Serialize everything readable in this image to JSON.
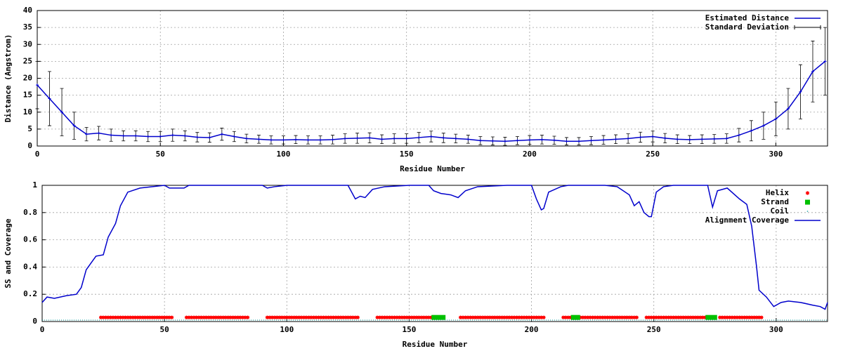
{
  "chart_data": [
    {
      "type": "line",
      "xlabel": "Residue Number",
      "ylabel": "Distance (Angstrom)",
      "xlim": [
        0,
        321
      ],
      "ylim": [
        0,
        40
      ],
      "xticks": [
        0,
        50,
        100,
        150,
        200,
        250,
        300
      ],
      "yticks": [
        0,
        5,
        10,
        15,
        20,
        25,
        30,
        35,
        40
      ],
      "grid": true,
      "x": [
        0,
        5,
        10,
        15,
        20,
        25,
        30,
        35,
        40,
        45,
        50,
        55,
        60,
        65,
        70,
        75,
        80,
        85,
        90,
        95,
        100,
        105,
        110,
        115,
        120,
        125,
        130,
        135,
        140,
        145,
        150,
        155,
        160,
        165,
        170,
        175,
        180,
        185,
        190,
        195,
        200,
        205,
        210,
        215,
        220,
        225,
        230,
        235,
        240,
        245,
        250,
        255,
        260,
        265,
        270,
        275,
        280,
        285,
        290,
        295,
        300,
        305,
        310,
        315,
        320
      ],
      "series": [
        {
          "name": "Estimated Distance",
          "color": "#0000cc",
          "values": [
            18,
            14,
            10,
            6,
            3.5,
            3.8,
            3.2,
            3,
            3,
            2.8,
            2.8,
            3.2,
            3,
            2.6,
            2.5,
            3.5,
            2.8,
            2.2,
            2,
            1.8,
            1.8,
            1.9,
            1.8,
            1.8,
            1.9,
            2.2,
            2.3,
            2.4,
            2,
            2.2,
            2.2,
            2.5,
            2.8,
            2.4,
            2.2,
            2,
            1.6,
            1.5,
            1.4,
            1.6,
            1.8,
            1.9,
            1.7,
            1.4,
            1.4,
            1.6,
            1.8,
            2,
            2.2,
            2.6,
            2.8,
            2.3,
            2,
            1.9,
            2,
            2.1,
            2.2,
            3.2,
            4.5,
            6,
            8,
            11,
            16,
            22,
            25
          ]
        }
      ],
      "errors": {
        "name": "Standard Deviation",
        "color": "#000000",
        "values": [
          7,
          8,
          7,
          4,
          2,
          2,
          1.8,
          1.5,
          1.5,
          1.5,
          1.5,
          1.8,
          1.5,
          1.4,
          1.4,
          1.8,
          1.5,
          1.3,
          1.2,
          1.2,
          1.2,
          1.2,
          1.2,
          1.2,
          1.3,
          1.4,
          1.5,
          1.5,
          1.3,
          1.4,
          1.4,
          1.5,
          1.6,
          1.4,
          1.3,
          1.2,
          1.2,
          1.2,
          1.2,
          1.2,
          1.3,
          1.3,
          1.2,
          1.1,
          1.1,
          1.2,
          1.3,
          1.3,
          1.4,
          1.5,
          1.6,
          1.4,
          1.3,
          1.2,
          1.3,
          1.3,
          1.4,
          2,
          3,
          4,
          5,
          6,
          8,
          9,
          10
        ]
      }
    },
    {
      "type": "line",
      "xlabel": "Residue Number",
      "ylabel": "SS and Coverage",
      "xlim": [
        0,
        321
      ],
      "ylim": [
        0,
        1
      ],
      "xticks": [
        0,
        50,
        100,
        150,
        200,
        250,
        300
      ],
      "yticks": [
        0,
        0.2,
        0.4,
        0.6,
        0.8,
        1
      ],
      "grid": true,
      "secondary_structure": [
        {
          "name": "Helix",
          "color": "#ff0000",
          "marker": "star",
          "y": 0.03,
          "segments": [
            [
              24,
              53
            ],
            [
              59,
              84
            ],
            [
              92,
              129
            ],
            [
              137,
              159
            ],
            [
              171,
              205
            ],
            [
              213,
              216
            ],
            [
              220,
              243
            ],
            [
              247,
              271
            ],
            [
              277,
              294
            ]
          ]
        },
        {
          "name": "Strand",
          "color": "#00c000",
          "marker": "square",
          "y": 0.03,
          "segments": [
            [
              160,
              164
            ],
            [
              217,
              219
            ],
            [
              272,
              275
            ]
          ]
        },
        {
          "name": "Coil",
          "color": "#009999",
          "marker": "dot",
          "y": 0.01,
          "segments": [
            [
              0,
              321
            ]
          ]
        }
      ],
      "x": [
        0,
        2,
        5,
        10,
        14,
        16,
        18,
        20,
        22,
        25,
        27,
        30,
        32,
        35,
        40,
        50,
        52,
        58,
        60,
        90,
        92,
        95,
        100,
        125,
        128,
        130,
        132,
        135,
        140,
        150,
        158,
        160,
        163,
        167,
        170,
        173,
        178,
        190,
        200,
        202,
        204,
        205,
        207,
        212,
        215,
        230,
        235,
        240,
        242,
        244,
        246,
        248,
        249,
        251,
        254,
        258,
        272,
        274,
        276,
        280,
        285,
        288,
        290,
        292,
        293,
        296,
        299,
        302,
        305,
        310,
        315,
        318,
        320,
        321
      ],
      "series": [
        {
          "name": "Alignment Coverage",
          "color": "#0000cc",
          "values": [
            0.14,
            0.18,
            0.17,
            0.19,
            0.2,
            0.25,
            0.38,
            0.43,
            0.48,
            0.49,
            0.62,
            0.72,
            0.85,
            0.95,
            0.98,
            1,
            0.98,
            0.98,
            1,
            1,
            0.98,
            0.99,
            1,
            1,
            0.9,
            0.92,
            0.91,
            0.97,
            0.99,
            1,
            1,
            0.96,
            0.94,
            0.93,
            0.91,
            0.96,
            0.99,
            1,
            1,
            0.9,
            0.82,
            0.83,
            0.95,
            0.99,
            1,
            1,
            0.99,
            0.93,
            0.85,
            0.88,
            0.8,
            0.77,
            0.77,
            0.95,
            0.99,
            1,
            1,
            0.84,
            0.96,
            0.98,
            0.9,
            0.86,
            0.7,
            0.4,
            0.23,
            0.18,
            0.11,
            0.14,
            0.15,
            0.14,
            0.12,
            0.11,
            0.09,
            0.14
          ]
        }
      ]
    }
  ]
}
